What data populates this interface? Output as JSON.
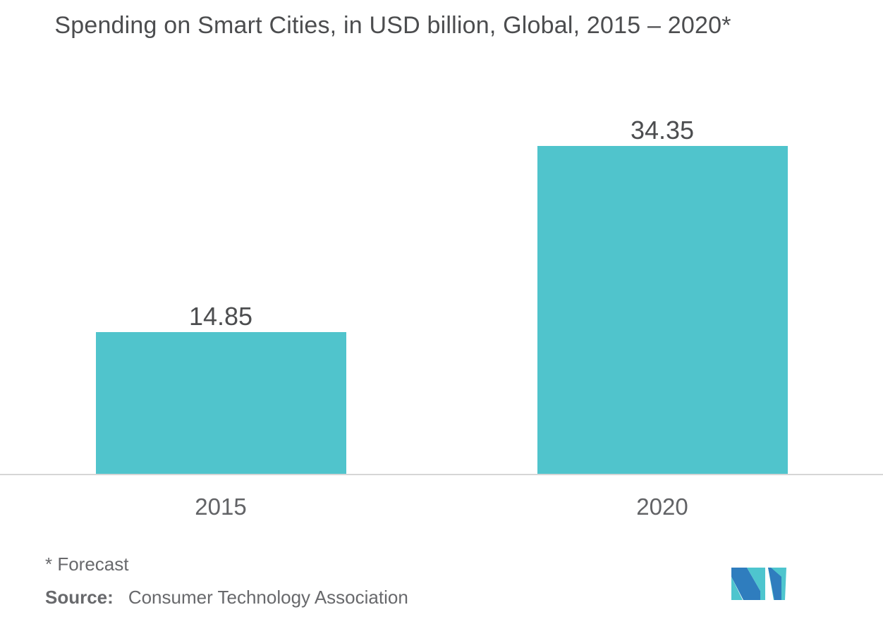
{
  "chart_data": {
    "type": "bar",
    "title": "Spending on Smart Cities, in USD billion, Global, 2015 – 2020*",
    "categories": [
      "2015",
      "2020"
    ],
    "values": [
      14.85,
      34.35
    ],
    "value_labels": [
      "14.85",
      "34.35"
    ],
    "xlabel": "",
    "ylabel": "",
    "ylim": [
      0,
      40
    ],
    "grid": false,
    "legend": "none",
    "bar_color": "#50C4CC"
  },
  "footer": {
    "forecast_note": "* Forecast",
    "source_label": "Source:",
    "source_value": "Consumer Technology Association"
  },
  "logo": {
    "name": "mordor-intelligence-logo"
  },
  "colors": {
    "bar": "#50C4CC",
    "title_text": "#4C4D4F",
    "label_text": "#626366",
    "muted_text": "#68696C",
    "axis_line": "#D6D6D6",
    "logo_teal": "#4EC5CE",
    "logo_blue": "#2F7DBE",
    "background": "#FFFFFF"
  }
}
